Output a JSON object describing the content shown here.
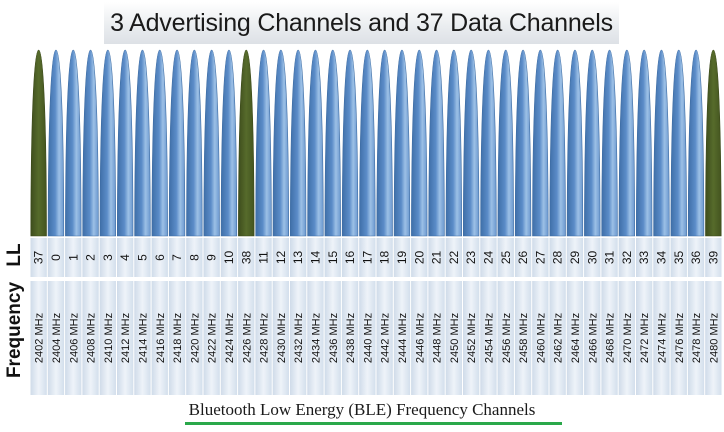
{
  "title": "3 Advertising Channels and 37 Data Channels",
  "caption": "Bluetooth Low Energy (BLE) Frequency Channels",
  "row_labels": {
    "ll": "LL",
    "frequency": "Frequency"
  },
  "colors": {
    "advertising": "#4d5f26",
    "data": "#4f81bd",
    "data_highlight": "#8fb3de",
    "cell_background": "#dfe7f1",
    "caption_underline": "#2aa84a"
  },
  "channels": [
    {
      "ll": "37",
      "freq": "2402 MHz",
      "type": "advertising"
    },
    {
      "ll": "0",
      "freq": "2404 MHz",
      "type": "data"
    },
    {
      "ll": "1",
      "freq": "2406 MHz",
      "type": "data"
    },
    {
      "ll": "2",
      "freq": "2408 MHz",
      "type": "data"
    },
    {
      "ll": "3",
      "freq": "2410 MHz",
      "type": "data"
    },
    {
      "ll": "4",
      "freq": "2412 MHz",
      "type": "data"
    },
    {
      "ll": "5",
      "freq": "2414 MHz",
      "type": "data"
    },
    {
      "ll": "6",
      "freq": "2416 MHz",
      "type": "data"
    },
    {
      "ll": "7",
      "freq": "2418 MHz",
      "type": "data"
    },
    {
      "ll": "8",
      "freq": "2420 MHz",
      "type": "data"
    },
    {
      "ll": "9",
      "freq": "2422 MHz",
      "type": "data"
    },
    {
      "ll": "10",
      "freq": "2424 MHz",
      "type": "data"
    },
    {
      "ll": "38",
      "freq": "2426 MHz",
      "type": "advertising"
    },
    {
      "ll": "11",
      "freq": "2428 MHz",
      "type": "data"
    },
    {
      "ll": "12",
      "freq": "2430 MHz",
      "type": "data"
    },
    {
      "ll": "13",
      "freq": "2432 MHz",
      "type": "data"
    },
    {
      "ll": "14",
      "freq": "2434 MHz",
      "type": "data"
    },
    {
      "ll": "15",
      "freq": "2436 MHz",
      "type": "data"
    },
    {
      "ll": "16",
      "freq": "2438 MHz",
      "type": "data"
    },
    {
      "ll": "17",
      "freq": "2440 MHz",
      "type": "data"
    },
    {
      "ll": "18",
      "freq": "2442 MHz",
      "type": "data"
    },
    {
      "ll": "19",
      "freq": "2444 MHz",
      "type": "data"
    },
    {
      "ll": "20",
      "freq": "2446 MHz",
      "type": "data"
    },
    {
      "ll": "21",
      "freq": "2448 MHz",
      "type": "data"
    },
    {
      "ll": "22",
      "freq": "2450 MHz",
      "type": "data"
    },
    {
      "ll": "23",
      "freq": "2452 MHz",
      "type": "data"
    },
    {
      "ll": "24",
      "freq": "2454 MHz",
      "type": "data"
    },
    {
      "ll": "25",
      "freq": "2456 MHz",
      "type": "data"
    },
    {
      "ll": "26",
      "freq": "2458 MHz",
      "type": "data"
    },
    {
      "ll": "27",
      "freq": "2460 MHz",
      "type": "data"
    },
    {
      "ll": "28",
      "freq": "2462 MHz",
      "type": "data"
    },
    {
      "ll": "29",
      "freq": "2464 MHz",
      "type": "data"
    },
    {
      "ll": "30",
      "freq": "2466 MHz",
      "type": "data"
    },
    {
      "ll": "31",
      "freq": "2468 MHz",
      "type": "data"
    },
    {
      "ll": "32",
      "freq": "2470 MHz",
      "type": "data"
    },
    {
      "ll": "33",
      "freq": "2472 MHz",
      "type": "data"
    },
    {
      "ll": "34",
      "freq": "2474 MHz",
      "type": "data"
    },
    {
      "ll": "35",
      "freq": "2476 MHz",
      "type": "data"
    },
    {
      "ll": "36",
      "freq": "2478 MHz",
      "type": "data"
    },
    {
      "ll": "39",
      "freq": "2480 MHz",
      "type": "advertising"
    }
  ]
}
